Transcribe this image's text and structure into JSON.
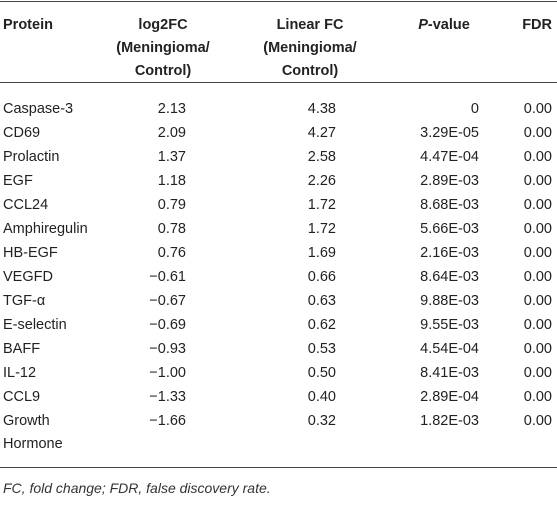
{
  "headers": {
    "protein": "Protein",
    "log2fc_1": "log2FC",
    "log2fc_2": "(Meningioma/",
    "log2fc_3": "Control)",
    "linear_1": "Linear FC",
    "linear_2": "(Meningioma/",
    "linear_3": "Control)",
    "p_italic": "P",
    "p_rest": "-value",
    "fdr": "FDR"
  },
  "rows": [
    {
      "protein": "Caspase-3",
      "log2fc": "2.13",
      "linear": "4.38",
      "p": "0",
      "fdr": "0.00"
    },
    {
      "protein": "CD69",
      "log2fc": "2.09",
      "linear": "4.27",
      "p": "3.29E-05",
      "fdr": "0.00"
    },
    {
      "protein": "Prolactin",
      "log2fc": "1.37",
      "linear": "2.58",
      "p": "4.47E-04",
      "fdr": "0.00"
    },
    {
      "protein": "EGF",
      "log2fc": "1.18",
      "linear": "2.26",
      "p": "2.89E-03",
      "fdr": "0.00"
    },
    {
      "protein": "CCL24",
      "log2fc": "0.79",
      "linear": "1.72",
      "p": "8.68E-03",
      "fdr": "0.00"
    },
    {
      "protein": "Amphiregulin",
      "log2fc": "0.78",
      "linear": "1.72",
      "p": "5.66E-03",
      "fdr": "0.00"
    },
    {
      "protein": "HB-EGF",
      "log2fc": "0.76",
      "linear": "1.69",
      "p": "2.16E-03",
      "fdr": "0.00"
    },
    {
      "protein": "VEGFD",
      "log2fc": "−0.61",
      "linear": "0.66",
      "p": "8.64E-03",
      "fdr": "0.00"
    },
    {
      "protein": "TGF-α",
      "log2fc": "−0.67",
      "linear": "0.63",
      "p": "9.88E-03",
      "fdr": "0.00"
    },
    {
      "protein": "E-selectin",
      "log2fc": "−0.69",
      "linear": "0.62",
      "p": "9.55E-03",
      "fdr": "0.00"
    },
    {
      "protein": "BAFF",
      "log2fc": "−0.93",
      "linear": "0.53",
      "p": "4.54E-04",
      "fdr": "0.00"
    },
    {
      "protein": "IL-12",
      "log2fc": "−1.00",
      "linear": "0.50",
      "p": "8.41E-03",
      "fdr": "0.00"
    },
    {
      "protein": "CCL9",
      "log2fc": "−1.33",
      "linear": "0.40",
      "p": "2.89E-04",
      "fdr": "0.00"
    },
    {
      "protein": "Growth",
      "protein_2": "Hormone",
      "log2fc": "−1.66",
      "linear": "0.32",
      "p": "1.82E-03",
      "fdr": "0.00"
    }
  ],
  "footnote": "FC, fold change; FDR, false discovery rate."
}
